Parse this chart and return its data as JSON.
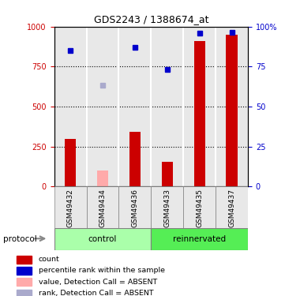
{
  "title": "GDS2243 / 1388674_at",
  "samples": [
    "GSM49432",
    "GSM49434",
    "GSM49436",
    "GSM49433",
    "GSM49435",
    "GSM49437"
  ],
  "groups": [
    "control",
    "control",
    "control",
    "reinnervated",
    "reinnervated",
    "reinnervated"
  ],
  "bar_values": [
    300,
    null,
    340,
    155,
    910,
    950
  ],
  "bar_absent_values": [
    null,
    100,
    null,
    null,
    null,
    null
  ],
  "rank_values": [
    850,
    null,
    870,
    730,
    960,
    965
  ],
  "rank_absent_values": [
    null,
    635,
    null,
    null,
    null,
    null
  ],
  "bar_color": "#cc0000",
  "bar_absent_color": "#ffaaaa",
  "rank_color": "#0000cc",
  "rank_absent_color": "#aaaacc",
  "ylim_left": [
    0,
    1000
  ],
  "ylim_right": [
    0,
    100
  ],
  "yticks_left": [
    0,
    250,
    500,
    750,
    1000
  ],
  "yticks_right": [
    0,
    25,
    50,
    75,
    100
  ],
  "ytick_right_labels": [
    "0",
    "25",
    "50",
    "75",
    "100%"
  ],
  "control_color": "#aaffaa",
  "reinnervated_color": "#55ee55",
  "group_label": "protocol",
  "background_color": "#ffffff",
  "plot_bg_color": "#e8e8e8"
}
